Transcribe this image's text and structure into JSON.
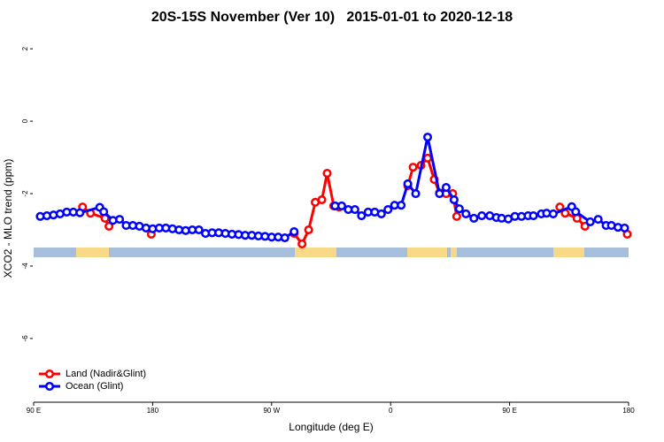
{
  "chart_data": {
    "type": "line",
    "title": "20S-15S November (Ver 10)   2015-01-01 to 2020-12-18",
    "x_label": "Longitude (deg E)",
    "y_label": "XCO2 - MLO trend (ppm)",
    "xlim": [
      90,
      540
    ],
    "ylim": [
      -7.76,
      2.37
    ],
    "xticks": [
      {
        "value": 90,
        "label": "90 E"
      },
      180,
      {
        "value": 270,
        "label": "90 W"
      },
      {
        "value": 360,
        "label": "0"
      },
      {
        "value": 450,
        "label": "90 E"
      },
      {
        "value": 540,
        "label": "180"
      }
    ],
    "yticks": [
      2,
      0,
      -2,
      -4,
      -6
    ],
    "legend": "bottom-left",
    "series": [
      {
        "name": "Land (Nadir&Glint)",
        "color": "#ff0000",
        "x": [
          127,
          133,
          144,
          147,
          null,
          179,
          null,
          287,
          293,
          298,
          303,
          308,
          312,
          317,
          321,
          null,
          373,
          377,
          383,
          388,
          393,
          397,
          402,
          407,
          410,
          null,
          488,
          492,
          501,
          507,
          null,
          539
        ],
        "values": [
          -2.37,
          -2.54,
          -2.68,
          -2.9,
          null,
          -3.12,
          null,
          -3.1,
          -3.39,
          -3.0,
          -2.24,
          -2.17,
          -1.44,
          -2.34,
          -2.37,
          null,
          -1.78,
          -1.27,
          -1.22,
          -1.02,
          -1.61,
          -1.98,
          -2.0,
          -2.0,
          -2.63,
          null,
          -2.37,
          -2.54,
          -2.68,
          -2.9,
          null,
          -3.12
        ]
      },
      {
        "name": "Ocean (Glint)",
        "color": "#0000ff",
        "x": [
          95,
          100,
          105,
          110,
          115,
          120,
          125,
          140,
          143,
          150,
          155,
          160,
          165,
          170,
          175,
          180,
          185,
          190,
          195,
          200,
          205,
          210,
          215,
          220,
          225,
          230,
          235,
          240,
          245,
          250,
          255,
          260,
          265,
          270,
          275,
          280,
          287,
          null,
          318,
          323,
          328,
          333,
          338,
          343,
          348,
          353,
          358,
          363,
          368,
          373,
          379,
          388,
          397,
          402,
          408,
          412,
          417,
          423,
          429,
          435,
          440,
          444,
          449,
          454,
          459,
          464,
          468,
          474,
          478,
          483,
          497,
          500,
          511,
          517,
          523,
          527,
          532,
          537
        ],
        "values": [
          -2.63,
          -2.61,
          -2.59,
          -2.56,
          -2.51,
          -2.51,
          -2.53,
          -2.38,
          -2.5,
          -2.74,
          -2.71,
          -2.88,
          -2.88,
          -2.9,
          -2.95,
          -2.97,
          -2.95,
          -2.95,
          -2.97,
          -3.0,
          -3.02,
          -3.0,
          -3.0,
          -3.1,
          -3.08,
          -3.08,
          -3.1,
          -3.12,
          -3.13,
          -3.15,
          -3.15,
          -3.17,
          -3.18,
          -3.2,
          -3.2,
          -3.22,
          -3.05,
          null,
          -2.34,
          -2.34,
          -2.44,
          -2.44,
          -2.61,
          -2.51,
          -2.51,
          -2.56,
          -2.44,
          -2.32,
          -2.32,
          -1.73,
          -2.0,
          -0.44,
          -2.0,
          -1.83,
          -2.17,
          -2.42,
          -2.56,
          -2.68,
          -2.61,
          -2.61,
          -2.66,
          -2.68,
          -2.7,
          -2.63,
          -2.63,
          -2.61,
          -2.61,
          -2.56,
          -2.54,
          -2.56,
          -2.36,
          -2.5,
          -2.78,
          -2.71,
          -2.88,
          -2.88,
          -2.93,
          -2.95
        ]
      }
    ]
  }
}
